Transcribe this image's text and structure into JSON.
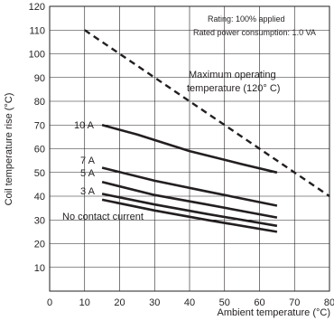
{
  "chart_data": {
    "type": "line",
    "title": "",
    "xlabel": "Ambient temperature (°C)",
    "ylabel": "Coil temperature rise (°C)",
    "xlim": [
      0,
      80
    ],
    "ylim": [
      0,
      120
    ],
    "x_ticks": [
      "0",
      "10",
      "20",
      "30",
      "40",
      "50",
      "60",
      "70",
      "80"
    ],
    "y_ticks": [
      "10",
      "20",
      "30",
      "40",
      "50",
      "60",
      "70",
      "80",
      "90",
      "100",
      "110",
      "120"
    ],
    "grid": true,
    "notes": [
      "Rating: 100% applied",
      "Rated power consumption: 1.0 VA"
    ],
    "series": [
      {
        "name": "10 A",
        "style": "solid",
        "x": [
          15,
          25,
          40,
          55,
          65
        ],
        "y": [
          70,
          66,
          59,
          53.5,
          50
        ]
      },
      {
        "name": "7 A",
        "style": "solid",
        "x": [
          15,
          30,
          45,
          65
        ],
        "y": [
          52,
          46.5,
          42,
          36
        ]
      },
      {
        "name": "5 A",
        "style": "solid",
        "x": [
          15,
          30,
          45,
          65
        ],
        "y": [
          46,
          40.5,
          36.5,
          31
        ]
      },
      {
        "name": "3 A",
        "style": "solid",
        "x": [
          15,
          30,
          45,
          65
        ],
        "y": [
          41,
          36.5,
          32.5,
          27.5
        ]
      },
      {
        "name": "No contact current",
        "style": "solid",
        "x": [
          15,
          30,
          45,
          65
        ],
        "y": [
          38.5,
          34,
          30,
          25
        ]
      },
      {
        "name": "Maximum operating temperature (120° C)",
        "style": "dashed",
        "x": [
          10,
          80
        ],
        "y": [
          110,
          40
        ]
      }
    ],
    "annotation_lines": [
      "Maximum operating",
      "temperature (120° C)"
    ]
  }
}
